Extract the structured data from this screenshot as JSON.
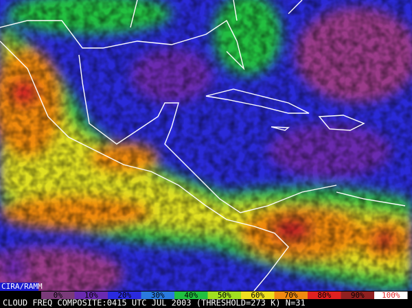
{
  "credit": "CIRA/RAMM",
  "legend": [
    {
      "label": "0%",
      "color": "#7a3a7a"
    },
    {
      "label": "10%",
      "color": "#6a2ab0"
    },
    {
      "label": "20%",
      "color": "#2a2ae0"
    },
    {
      "label": "30%",
      "color": "#2a7ae0"
    },
    {
      "label": "40%",
      "color": "#20c040"
    },
    {
      "label": "50%",
      "color": "#a0e020"
    },
    {
      "label": "60%",
      "color": "#f0e020"
    },
    {
      "label": "70%",
      "color": "#f08a10"
    },
    {
      "label": "80%",
      "color": "#e02020"
    },
    {
      "label": "90%",
      "color": "#902020"
    },
    {
      "label": "100%",
      "color": "#ffffff"
    }
  ],
  "caption": "CLOUD FREQ COMPOSITE:0415 UTC JUL 2003 (THRESHOLD=273 K) N=31"
}
